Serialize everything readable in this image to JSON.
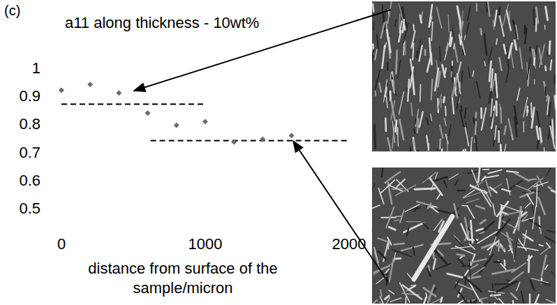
{
  "chart_data": {
    "type": "scatter",
    "panel_label": "(c)",
    "title": "a11 along thickness - 10wt%",
    "x_label": "distance from surface of the sample/micron",
    "x": [
      0,
      200,
      400,
      600,
      800,
      1000,
      1200,
      1400,
      1600
    ],
    "values": [
      0.92,
      0.94,
      0.91,
      0.838,
      0.795,
      0.808,
      0.735,
      0.745,
      0.758
    ],
    "color": "#6b6b6b",
    "marker": "diamond",
    "grid": false,
    "xlim": [
      0,
      2000
    ],
    "xticks": [
      0,
      1000,
      2000
    ],
    "ylim": [
      0.5,
      1
    ],
    "yticks": [
      0.5,
      0.6,
      0.7,
      0.8,
      0.9,
      1
    ],
    "reference_lines": [
      {
        "y": 0.87,
        "x": [
          0,
          1000
        ]
      },
      {
        "y": 0.74,
        "x": [
          620,
          2000
        ]
      }
    ]
  }
}
